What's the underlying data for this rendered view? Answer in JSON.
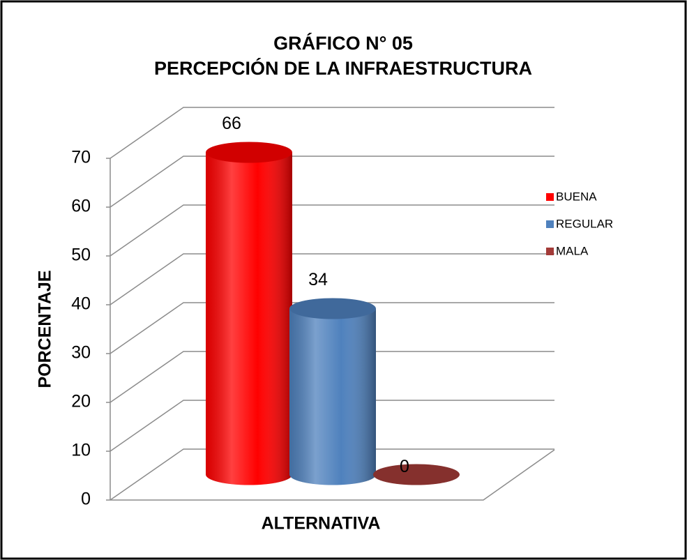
{
  "chart_data": {
    "type": "bar",
    "title": [
      "GRÁFICO N° 05",
      "PERCEPCIÓN DE LA INFRAESTRUCTURA"
    ],
    "x_label": "ALTERNATIVA",
    "y_label": "PORCENTAJE",
    "series": [
      {
        "name": "BUENA",
        "color": "#ff0000",
        "values": [
          66
        ]
      },
      {
        "name": "REGULAR",
        "color": "#4f81bd",
        "values": [
          34
        ]
      },
      {
        "name": "MALA",
        "color": "#a33b38",
        "values": [
          0
        ]
      }
    ],
    "ylim": [
      0,
      70
    ],
    "yticks": [
      0,
      10,
      20,
      30,
      40,
      50,
      60,
      70
    ],
    "grid": true,
    "legend": "right"
  }
}
